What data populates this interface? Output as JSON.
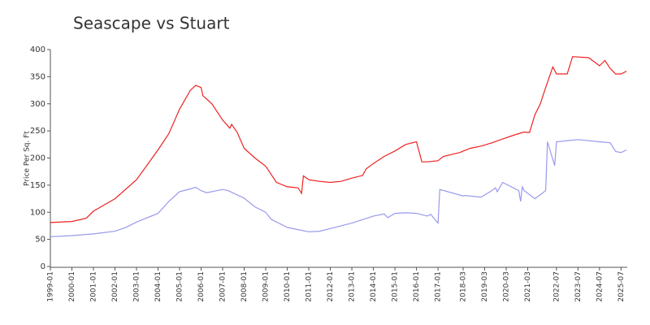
{
  "chart_data": {
    "type": "line",
    "title": "Seascape vs Stuart",
    "y_label": "Price Per Sq. Ft",
    "xlim": [
      "1999-01",
      "2025-10"
    ],
    "xticks": [
      "1999-01",
      "2000-01",
      "2001-01",
      "2002-01",
      "2003-01",
      "2004-01",
      "2005-01",
      "2006-01",
      "2007-01",
      "2008-01",
      "2009-01",
      "2010-01",
      "2011-01",
      "2012-01",
      "2013-01",
      "2014-01",
      "2015-01",
      "2016-01",
      "2017-01",
      "2018-03",
      "2019-03",
      "2020-03",
      "2021-03",
      "2022-07",
      "2023-07",
      "2024-07",
      "2025-07"
    ],
    "ylim": [
      0,
      400
    ],
    "yticks": [
      0,
      50,
      100,
      150,
      200,
      250,
      300,
      350,
      400
    ],
    "series": [
      {
        "color": "#ee2222",
        "x": [
          "1999-01",
          "2000-01",
          "2000-09",
          "2001-01",
          "2002-01",
          "2003-01",
          "2004-01",
          "2004-07",
          "2005-01",
          "2005-07",
          "2005-10",
          "2006-01",
          "2006-02",
          "2006-07",
          "2007-01",
          "2007-05",
          "2007-06",
          "2007-09",
          "2008-01",
          "2008-07",
          "2009-01",
          "2009-07",
          "2010-01",
          "2010-07",
          "2010-09",
          "2010-10",
          "2011-01",
          "2011-07",
          "2012-01",
          "2012-07",
          "2013-01",
          "2013-07",
          "2013-09",
          "2014-01",
          "2014-07",
          "2015-01",
          "2015-07",
          "2016-01",
          "2016-04",
          "2016-07",
          "2017-01",
          "2017-04",
          "2018-01",
          "2018-07",
          "2019-01",
          "2019-07",
          "2020-01",
          "2020-07",
          "2021-01",
          "2021-04",
          "2021-07",
          "2021-10",
          "2022-01",
          "2022-05",
          "2022-07",
          "2023-01",
          "2023-04",
          "2024-01",
          "2024-07",
          "2024-10",
          "2025-01",
          "2025-04",
          "2025-07",
          "2025-10"
        ],
        "values": [
          81,
          83,
          89,
          102,
          125,
          160,
          215,
          245,
          290,
          325,
          334,
          330,
          315,
          300,
          270,
          255,
          262,
          248,
          218,
          200,
          185,
          155,
          147,
          145,
          135,
          167,
          160,
          157,
          155,
          157,
          163,
          168,
          180,
          190,
          203,
          213,
          225,
          230,
          193,
          193,
          195,
          203,
          210,
          218,
          222,
          228,
          235,
          242,
          248,
          247,
          280,
          300,
          330,
          368,
          355,
          355,
          387,
          385,
          370,
          380,
          365,
          355,
          355,
          360
        ]
      },
      {
        "color": "#9999ee",
        "x": [
          "1999-01",
          "2000-01",
          "2001-01",
          "2002-01",
          "2002-07",
          "2003-01",
          "2004-01",
          "2004-07",
          "2005-01",
          "2005-07",
          "2005-10",
          "2006-01",
          "2006-04",
          "2007-01",
          "2007-04",
          "2008-01",
          "2008-07",
          "2009-01",
          "2009-04",
          "2010-01",
          "2010-07",
          "2011-01",
          "2011-07",
          "2012-01",
          "2013-01",
          "2014-01",
          "2014-07",
          "2014-09",
          "2015-01",
          "2015-07",
          "2016-01",
          "2016-07",
          "2016-09",
          "2017-01",
          "2017-02",
          "2018-03",
          "2018-04",
          "2019-01",
          "2019-07",
          "2019-09",
          "2019-10",
          "2020-01",
          "2020-07",
          "2020-10",
          "2020-11",
          "2020-12",
          "2021-01",
          "2021-07",
          "2022-01",
          "2022-02",
          "2022-06",
          "2022-07",
          "2023-01",
          "2023-07",
          "2024-07",
          "2025-01",
          "2025-04",
          "2025-07",
          "2025-10"
        ],
        "values": [
          55,
          57,
          60,
          65,
          72,
          82,
          98,
          120,
          138,
          143,
          146,
          140,
          136,
          142,
          140,
          126,
          110,
          100,
          87,
          72,
          68,
          64,
          65,
          70,
          80,
          93,
          97,
          90,
          98,
          99,
          98,
          93,
          96,
          80,
          142,
          130,
          131,
          128,
          140,
          145,
          138,
          155,
          145,
          140,
          120,
          147,
          140,
          125,
          140,
          230,
          186,
          230,
          232,
          234,
          230,
          228,
          212,
          210,
          215
        ]
      }
    ]
  }
}
